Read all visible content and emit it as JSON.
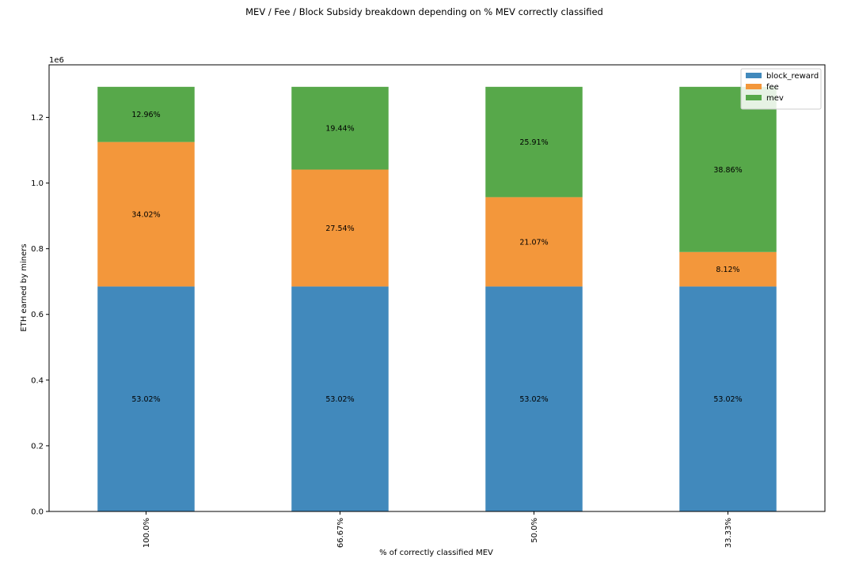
{
  "chart_data": {
    "type": "bar",
    "stacked": true,
    "title": "MEV / Fee / Block Subsidy breakdown depending on % MEV correctly classified",
    "xlabel": "% of correctly classified MEV",
    "ylabel": "ETH earned by miners",
    "y_offset_label": "1e6",
    "ylim": [
      0,
      1.36
    ],
    "yticks": [
      0.0,
      0.2,
      0.4,
      0.6,
      0.8,
      1.0,
      1.2
    ],
    "ytick_labels": [
      "0.0",
      "0.2",
      "0.4",
      "0.6",
      "0.8",
      "1.0",
      "1.2"
    ],
    "categories": [
      "100.0%",
      "66.67%",
      "50.0%",
      "33.33%"
    ],
    "series": [
      {
        "name": "block_reward",
        "color": "#4189bc",
        "values": [
          0.685,
          0.685,
          0.685,
          0.685
        ],
        "labels": [
          "53.02%",
          "53.02%",
          "53.02%",
          "53.02%"
        ]
      },
      {
        "name": "fee",
        "color": "#f3973b",
        "values": [
          0.44,
          0.356,
          0.272,
          0.105
        ],
        "labels": [
          "34.02%",
          "27.54%",
          "21.07%",
          "8.12%"
        ]
      },
      {
        "name": "mev",
        "color": "#57a84a",
        "values": [
          0.168,
          0.252,
          0.336,
          0.503
        ],
        "labels": [
          "12.96%",
          "19.44%",
          "25.91%",
          "38.86%"
        ]
      }
    ],
    "grid": false,
    "legend": "top-right"
  }
}
